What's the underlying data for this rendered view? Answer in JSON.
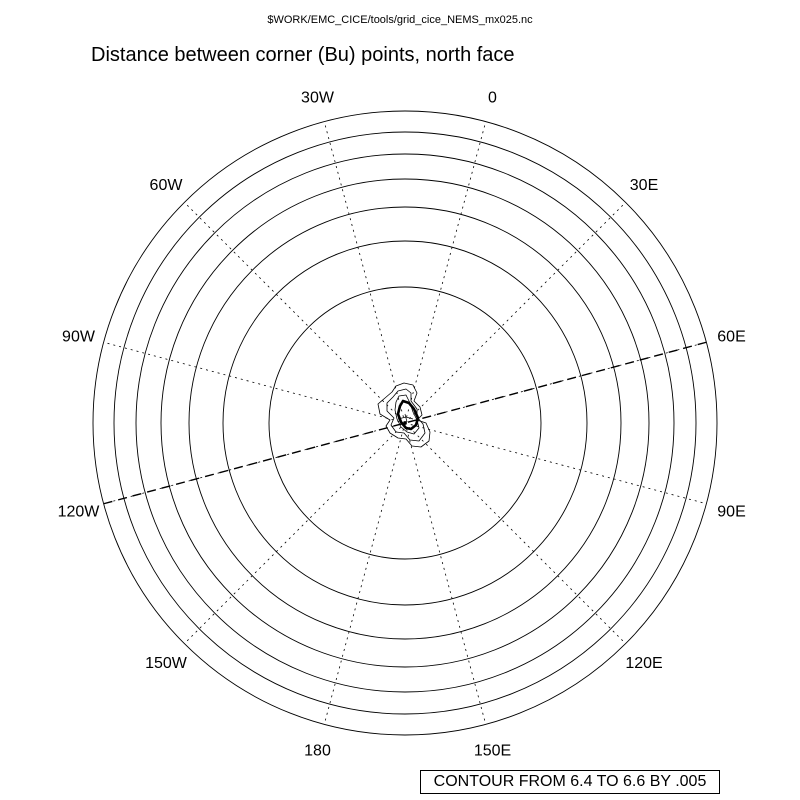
{
  "file_path": "$WORK/EMC_CICE/tools/grid_cice_NEMS_mx025.nc",
  "title": "Distance between corner (Bu) points, north face",
  "contour_info": "CONTOUR FROM 6.4 TO 6.6 BY .005",
  "chart_data": {
    "type": "contour",
    "projection": "polar-stereographic",
    "title": "Distance between corner (Bu) points, north face",
    "longitude_labels": [
      "0",
      "30E",
      "60E",
      "90E",
      "120E",
      "150E",
      "180",
      "150W",
      "120W",
      "90W",
      "60W",
      "30W"
    ],
    "longitude_label_degrees": [
      0,
      30,
      60,
      90,
      120,
      150,
      180,
      -150,
      -120,
      -90,
      -60,
      -30
    ],
    "contour_min": 6.4,
    "contour_max": 6.6,
    "contour_interval": 0.005,
    "dashed_meridian_degrees": [
      60,
      -120
    ]
  }
}
